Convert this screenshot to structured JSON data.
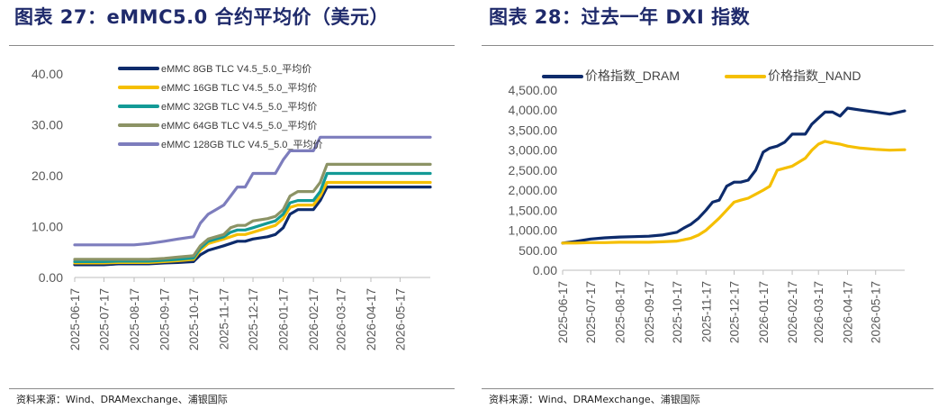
{
  "charts": [
    {
      "title": "图表 27：eMMC5.0 合约平均价（美元）",
      "source": "资料来源：Wind、DRAMexchange、浦银国际"
    },
    {
      "title": "图表 28：过去一年 DXI 指数",
      "source": "资料来源：Wind、DRAMexchange、浦银国际"
    }
  ],
  "chart_data": [
    {
      "type": "line",
      "title": "",
      "xlabel": "",
      "ylabel": "",
      "ylim": [
        0,
        45
      ],
      "grid": false,
      "legend_position": "top",
      "x_ticks": [
        "2025-06-17",
        "2025-07-17",
        "2025-08-17",
        "2025-09-17",
        "2025-10-17",
        "2025-11-17",
        "2025-12-17",
        "2026-01-17",
        "2026-02-17",
        "2026-03-17",
        "2026-04-17",
        "2026-05-17"
      ],
      "y_ticks": [
        "0.00",
        "10.00",
        "20.00",
        "30.00",
        "40.00"
      ],
      "x": [
        "2025-06-17",
        "2025-07-17",
        "2025-08-01",
        "2025-08-17",
        "2025-09-01",
        "2025-09-17",
        "2025-10-01",
        "2025-10-17",
        "2025-10-24",
        "2025-11-01",
        "2025-11-09",
        "2025-11-17",
        "2025-11-24",
        "2025-12-01",
        "2025-12-09",
        "2025-12-17",
        "2026-01-01",
        "2026-01-09",
        "2026-01-17",
        "2026-01-24",
        "2026-02-01",
        "2026-02-09",
        "2026-02-17",
        "2026-02-24",
        "2026-03-03",
        "2026-03-10",
        "2026-03-17",
        "2026-04-17",
        "2026-05-17",
        "2026-06-17"
      ],
      "series": [
        {
          "name": "eMMC 8GB TLC V4.5_5.0_平均价",
          "color": "#0d2b6b",
          "values": [
            2.8,
            2.8,
            3.0,
            3.0,
            3.0,
            3.2,
            3.3,
            3.5,
            5.0,
            6.0,
            6.5,
            7.0,
            7.5,
            8.0,
            8.0,
            8.5,
            9.0,
            9.5,
            11.0,
            14.0,
            15.0,
            15.0,
            15.0,
            17.0,
            20.0,
            20.0,
            20.0,
            20.0,
            20.0,
            20.0
          ]
        },
        {
          "name": "eMMC 16GB TLC V4.5_5.0_平均价",
          "color": "#f5bf00",
          "values": [
            3.2,
            3.2,
            3.3,
            3.3,
            3.3,
            3.5,
            3.7,
            4.0,
            6.0,
            7.5,
            8.0,
            8.5,
            9.0,
            9.5,
            9.5,
            10.0,
            11.0,
            11.5,
            13.0,
            15.5,
            16.0,
            16.0,
            16.0,
            18.0,
            21.0,
            21.0,
            21.0,
            21.0,
            21.0,
            21.0
          ]
        },
        {
          "name": "eMMC 32GB TLC V4.5_5.0_平均价",
          "color": "#139a96",
          "values": [
            3.5,
            3.5,
            3.6,
            3.6,
            3.6,
            3.8,
            4.0,
            4.3,
            6.5,
            8.0,
            8.5,
            9.0,
            10.0,
            10.5,
            10.5,
            11.0,
            12.0,
            12.5,
            14.0,
            16.5,
            17.0,
            17.0,
            17.0,
            19.0,
            23.0,
            23.0,
            23.0,
            23.0,
            23.0,
            23.0
          ]
        },
        {
          "name": "eMMC 64GB TLC V4.5_5.0_平均价",
          "color": "#8c9365",
          "values": [
            4.0,
            4.0,
            4.0,
            4.0,
            4.0,
            4.2,
            4.5,
            4.8,
            7.0,
            8.5,
            9.0,
            9.5,
            11.0,
            11.5,
            11.5,
            12.5,
            13.0,
            13.5,
            15.0,
            18.0,
            19.0,
            19.0,
            19.0,
            21.0,
            25.0,
            25.0,
            25.0,
            25.0,
            25.0,
            25.0
          ]
        },
        {
          "name": "eMMC 128GB TLC V4.5_5.0_平均价",
          "color": "#7d7dbd",
          "values": [
            7.2,
            7.2,
            7.2,
            7.2,
            7.5,
            8.0,
            8.5,
            9.0,
            12.0,
            14.0,
            15.0,
            16.0,
            18.0,
            20.0,
            20.0,
            23.0,
            23.0,
            23.0,
            26.0,
            28.0,
            28.0,
            28.0,
            28.0,
            31.0,
            31.0,
            31.0,
            31.0,
            31.0,
            31.0,
            31.0
          ]
        }
      ]
    },
    {
      "type": "line",
      "title": "",
      "xlabel": "",
      "ylabel": "",
      "ylim": [
        0,
        4500
      ],
      "grid": false,
      "legend_position": "top",
      "x_ticks": [
        "2025-06-17",
        "2025-07-17",
        "2025-08-17",
        "2025-09-17",
        "2025-10-17",
        "2025-11-17",
        "2025-12-17",
        "2026-01-17",
        "2026-02-17",
        "2026-03-17",
        "2026-04-17",
        "2026-05-17"
      ],
      "y_ticks": [
        "0.00",
        "500.00",
        "1,000.00",
        "1,500.00",
        "2,000.00",
        "2,500.00",
        "3,000.00",
        "3,500.00",
        "4,000.00",
        "4,500.00"
      ],
      "x": [
        "2025-06-17",
        "2025-07-01",
        "2025-07-17",
        "2025-08-01",
        "2025-08-17",
        "2025-09-01",
        "2025-09-17",
        "2025-10-01",
        "2025-10-17",
        "2025-10-24",
        "2025-11-01",
        "2025-11-09",
        "2025-11-17",
        "2025-11-24",
        "2025-12-01",
        "2025-12-09",
        "2025-12-17",
        "2025-12-24",
        "2026-01-01",
        "2026-01-09",
        "2026-01-17",
        "2026-01-24",
        "2026-02-01",
        "2026-02-09",
        "2026-02-17",
        "2026-02-24",
        "2026-03-03",
        "2026-03-10",
        "2026-03-17",
        "2026-03-24",
        "2026-04-01",
        "2026-04-09",
        "2026-04-17",
        "2026-05-01",
        "2026-05-17",
        "2026-06-01",
        "2026-06-17"
      ],
      "series": [
        {
          "name": "价格指数_DRAM",
          "color": "#0d2b6b",
          "values": [
            680,
            720,
            780,
            810,
            830,
            840,
            850,
            880,
            950,
            1050,
            1150,
            1300,
            1500,
            1700,
            1750,
            2100,
            2200,
            2200,
            2250,
            2500,
            2950,
            3050,
            3100,
            3200,
            3400,
            3400,
            3400,
            3650,
            3800,
            3950,
            3950,
            3850,
            4050,
            4000,
            3950,
            3900,
            3980
          ]
        },
        {
          "name": "价格指数_NAND",
          "color": "#f5bf00",
          "values": [
            680,
            680,
            690,
            690,
            700,
            700,
            700,
            710,
            730,
            760,
            800,
            880,
            1000,
            1150,
            1300,
            1500,
            1700,
            1750,
            1800,
            1900,
            2000,
            2100,
            2500,
            2550,
            2600,
            2700,
            2800,
            3000,
            3150,
            3220,
            3180,
            3150,
            3100,
            3050,
            3020,
            3000,
            3010
          ]
        }
      ]
    }
  ]
}
